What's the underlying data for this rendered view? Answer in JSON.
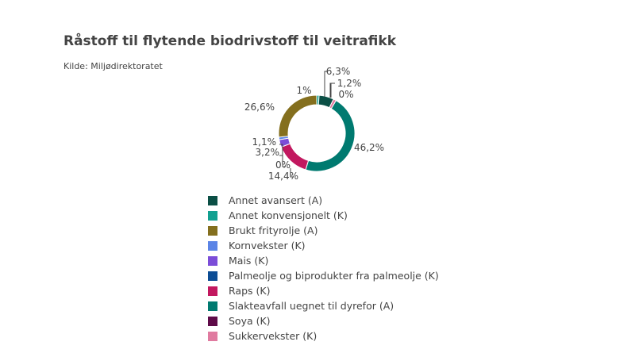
{
  "chart_data": {
    "type": "pie",
    "hole": true,
    "title": "Råstoff til flytende biodrivstoff til veitrafikk",
    "subtitle": "Kilde: Miljødirektoratet",
    "legend_placement": "bottom",
    "slices": [
      {
        "name": "Annet avansert (A)",
        "value": 6.3,
        "label": "6,3%",
        "color": "#0b4f45"
      },
      {
        "name": "Annet konvensjonelt (K)",
        "value": 1.0,
        "label": "1%",
        "color": "#12a090"
      },
      {
        "name": "Brukt frityrolje (A)",
        "value": 26.6,
        "label": "26,6%",
        "color": "#846f1e"
      },
      {
        "name": "Kornvekster (K)",
        "value": 1.1,
        "label": "1,1%",
        "color": "#5b84e6"
      },
      {
        "name": "Mais (K)",
        "value": 3.2,
        "label": "3,2%",
        "color": "#7b4dd8"
      },
      {
        "name": "Palmeolje og biprodukter fra palmeolje (K)",
        "value": 0,
        "label": "0%",
        "color": "#0c4c94"
      },
      {
        "name": "Raps (K)",
        "value": 14.4,
        "label": "14,4%",
        "color": "#c2185f"
      },
      {
        "name": "Slakteavfall uegnet til dyrefor (A)",
        "value": 46.2,
        "label": "46,2%",
        "color": "#007a70"
      },
      {
        "name": "Soya (K)",
        "value": 0,
        "label": "0%",
        "color": "#5e0b48"
      },
      {
        "name": "Sukkervekster (K)",
        "value": 1.2,
        "label": "1,2%",
        "color": "#e07ba0"
      }
    ]
  }
}
